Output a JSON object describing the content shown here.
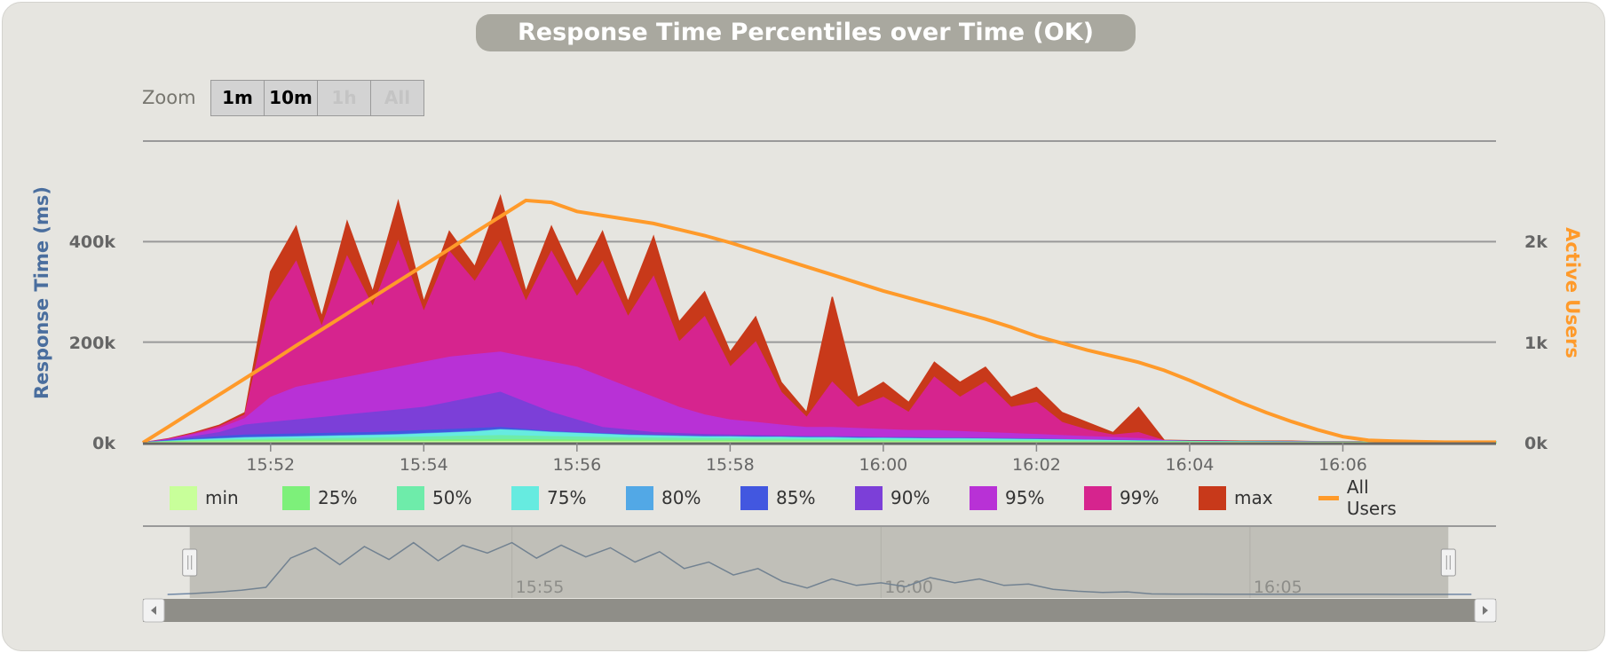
{
  "title": "Response Time Percentiles over Time (OK)",
  "zoom": {
    "label": "Zoom",
    "buttons": [
      {
        "label": "1m",
        "enabled": true
      },
      {
        "label": "10m",
        "enabled": true
      },
      {
        "label": "1h",
        "enabled": false
      },
      {
        "label": "All",
        "enabled": false
      }
    ]
  },
  "chart_data": {
    "type": "area",
    "title": "Response Time Percentiles over Time (OK)",
    "xlabel": "",
    "ylabel": "Response Time (ms)",
    "y2label": "Active Users",
    "xlim": [
      "15:50:20",
      "16:08:00"
    ],
    "ylim": [
      0,
      600000
    ],
    "y2lim": [
      0,
      3000
    ],
    "x_ticks": [
      "15:52",
      "15:54",
      "15:56",
      "15:58",
      "16:00",
      "16:02",
      "16:04",
      "16:06"
    ],
    "y_ticks": [
      "0k",
      "200k",
      "400k"
    ],
    "y2_ticks": [
      "0k",
      "1k",
      "2k"
    ],
    "grid": true,
    "legend": "bottom",
    "x": [
      "15:50:20",
      "15:50:40",
      "15:51:00",
      "15:51:20",
      "15:51:40",
      "15:52:00",
      "15:52:20",
      "15:52:40",
      "15:53:00",
      "15:53:20",
      "15:53:40",
      "15:54:00",
      "15:54:20",
      "15:54:40",
      "15:55:00",
      "15:55:20",
      "15:55:40",
      "15:56:00",
      "15:56:20",
      "15:56:40",
      "15:57:00",
      "15:57:20",
      "15:57:40",
      "15:58:00",
      "15:58:20",
      "15:58:40",
      "15:59:00",
      "15:59:20",
      "15:59:40",
      "16:00:00",
      "16:00:20",
      "16:00:40",
      "16:01:00",
      "16:01:20",
      "16:01:40",
      "16:02:00",
      "16:02:20",
      "16:02:40",
      "16:03:00",
      "16:03:20",
      "16:03:40",
      "16:04:00",
      "16:04:20",
      "16:04:40",
      "16:05:00",
      "16:05:20",
      "16:05:40",
      "16:06:00",
      "16:06:20",
      "16:06:40",
      "16:07:00",
      "16:07:20",
      "16:07:40",
      "16:08:00"
    ],
    "series_scale_note": "k",
    "series": [
      {
        "name": "max",
        "color": "#C8391A",
        "axis": "left",
        "values": [
          0,
          8,
          20,
          35,
          60,
          340,
          430,
          250,
          440,
          300,
          480,
          280,
          420,
          350,
          490,
          300,
          430,
          320,
          420,
          280,
          410,
          240,
          300,
          180,
          250,
          120,
          60,
          290,
          90,
          120,
          80,
          160,
          120,
          150,
          90,
          110,
          60,
          40,
          20,
          70,
          5,
          4,
          4,
          3,
          3,
          3,
          2,
          2,
          2,
          2,
          1,
          1,
          1,
          1
        ]
      },
      {
        "name": "99%",
        "color": "#D6248E",
        "axis": "left",
        "values": [
          0,
          7,
          18,
          32,
          55,
          280,
          360,
          230,
          370,
          270,
          400,
          260,
          380,
          320,
          400,
          280,
          380,
          290,
          360,
          250,
          330,
          200,
          250,
          150,
          200,
          100,
          50,
          120,
          70,
          90,
          60,
          130,
          90,
          120,
          70,
          80,
          40,
          25,
          15,
          20,
          4,
          3,
          3,
          2,
          2,
          2,
          1.5,
          1.5,
          1.5,
          1.5,
          1,
          1,
          1,
          1
        ]
      },
      {
        "name": "95%",
        "color": "#B831D6",
        "axis": "left",
        "values": [
          0,
          6,
          16,
          28,
          48,
          90,
          110,
          120,
          130,
          140,
          150,
          160,
          170,
          175,
          180,
          170,
          160,
          150,
          130,
          110,
          90,
          70,
          55,
          45,
          40,
          35,
          30,
          30,
          28,
          26,
          24,
          24,
          22,
          20,
          18,
          16,
          14,
          12,
          10,
          8,
          4,
          3,
          3,
          2,
          2,
          2,
          1.5,
          1.5,
          1.2,
          1.2,
          1,
          1,
          1,
          1
        ]
      },
      {
        "name": "90%",
        "color": "#7C3FD8",
        "axis": "left",
        "values": [
          0,
          5,
          12,
          20,
          35,
          40,
          45,
          50,
          55,
          60,
          65,
          70,
          80,
          90,
          100,
          80,
          60,
          45,
          30,
          25,
          20,
          18,
          16,
          15,
          14,
          13,
          12,
          12,
          11,
          10,
          10,
          9,
          9,
          8,
          8,
          7,
          6,
          5,
          5,
          4,
          3,
          3,
          2,
          2,
          2,
          1.5,
          1.5,
          1.2,
          1.2,
          1,
          1,
          1,
          1,
          1
        ]
      },
      {
        "name": "85%",
        "color": "#4257E0",
        "axis": "left",
        "values": [
          0,
          4,
          8,
          12,
          15,
          16,
          17,
          18,
          19,
          20,
          22,
          24,
          26,
          28,
          30,
          26,
          22,
          20,
          18,
          16,
          15,
          14,
          13,
          12,
          12,
          11,
          11,
          10,
          10,
          9,
          9,
          8,
          8,
          8,
          7,
          7,
          6,
          5,
          4,
          4,
          3,
          2.5,
          2,
          2,
          1.8,
          1.5,
          1.2,
          1.2,
          1,
          1,
          1,
          1,
          1,
          1
        ]
      },
      {
        "name": "80%",
        "color": "#52A8E6",
        "axis": "left",
        "values": [
          0,
          3,
          6,
          8,
          10,
          11,
          12,
          13,
          14,
          15,
          16,
          18,
          20,
          22,
          26,
          24,
          21,
          19,
          17,
          15,
          14,
          13,
          12,
          12,
          11,
          11,
          10,
          10,
          9,
          9,
          8,
          8,
          8,
          7,
          7,
          6,
          6,
          5,
          4,
          3.5,
          3,
          2.5,
          2,
          1.8,
          1.6,
          1.4,
          1.2,
          1.1,
          1,
          1,
          1,
          0.9,
          0.9,
          0.9
        ]
      },
      {
        "name": "75%",
        "color": "#66EBE0",
        "axis": "left",
        "values": [
          0,
          2.5,
          5,
          7,
          9,
          10,
          11,
          12,
          13,
          14,
          15,
          17,
          19,
          21,
          25,
          23,
          20,
          18,
          16,
          14,
          13,
          12,
          11,
          11,
          10,
          10,
          9,
          9,
          8,
          8,
          8,
          7,
          7,
          7,
          6,
          6,
          5,
          4.5,
          4,
          3,
          2.6,
          2.2,
          1.8,
          1.6,
          1.4,
          1.2,
          1.1,
          1,
          1,
          0.9,
          0.9,
          0.8,
          0.8,
          0.8
        ]
      },
      {
        "name": "50%",
        "color": "#6EECAA",
        "axis": "left",
        "values": [
          0,
          2,
          3.5,
          5,
          6,
          7,
          7.5,
          8,
          8.5,
          9,
          10,
          11,
          12,
          13,
          14,
          13,
          12,
          11,
          10,
          9.5,
          9,
          8.5,
          8,
          7.5,
          7,
          7,
          6.5,
          6,
          6,
          5.5,
          5,
          5,
          4.8,
          4.5,
          4.2,
          4,
          3.6,
          3.2,
          2.8,
          2.4,
          2,
          1.7,
          1.4,
          1.2,
          1.1,
          1,
          0.9,
          0.8,
          0.8,
          0.7,
          0.7,
          0.7,
          0.6,
          0.6
        ]
      },
      {
        "name": "25%",
        "color": "#7DF07A",
        "axis": "left",
        "values": [
          0,
          1.5,
          2.5,
          3,
          3.5,
          4,
          4,
          4.2,
          4.4,
          4.6,
          5,
          5,
          5.5,
          5.5,
          6,
          6,
          5.5,
          5,
          5,
          4.6,
          4.4,
          4.2,
          4,
          3.8,
          3.6,
          3.4,
          3.2,
          3,
          3,
          2.8,
          2.6,
          2.5,
          2.4,
          2.2,
          2,
          2,
          1.8,
          1.6,
          1.4,
          1.2,
          1,
          0.9,
          0.8,
          0.7,
          0.6,
          0.6,
          0.5,
          0.5,
          0.5,
          0.4,
          0.4,
          0.4,
          0.4,
          0.4
        ]
      },
      {
        "name": "min",
        "color": "#C8FF9A",
        "axis": "left",
        "values": [
          0,
          0.5,
          0.8,
          1,
          1.2,
          1.4,
          1.5,
          1.6,
          1.7,
          1.8,
          2,
          2,
          2,
          2,
          2.2,
          2.2,
          2,
          2,
          2,
          1.8,
          1.8,
          1.6,
          1.6,
          1.5,
          1.4,
          1.4,
          1.3,
          1.2,
          1.2,
          1.1,
          1,
          1,
          1,
          0.9,
          0.9,
          0.8,
          0.8,
          0.7,
          0.6,
          0.5,
          0.4,
          0.4,
          0.3,
          0.3,
          0.3,
          0.3,
          0.2,
          0.2,
          0.2,
          0.2,
          0.2,
          0.2,
          0.2,
          0.2
        ]
      },
      {
        "name": "All Users",
        "color": "#FF9A2A",
        "axis": "right",
        "type": "line",
        "values": [
          0,
          160,
          320,
          480,
          640,
          800,
          965,
          1125,
          1285,
          1445,
          1605,
          1765,
          1925,
          2090,
          2250,
          2410,
          2390,
          2300,
          2260,
          2220,
          2180,
          2120,
          2060,
          1990,
          1910,
          1830,
          1750,
          1670,
          1590,
          1510,
          1440,
          1370,
          1300,
          1230,
          1150,
          1060,
          990,
          920,
          860,
          800,
          720,
          620,
          510,
          400,
          300,
          210,
          130,
          60,
          25,
          15,
          10,
          5,
          5,
          5
        ]
      }
    ],
    "legend_order": [
      "min",
      "25%",
      "50%",
      "75%",
      "80%",
      "85%",
      "90%",
      "95%",
      "99%",
      "max",
      "All Users"
    ],
    "navigator": {
      "xlim": [
        "15:50:00",
        "16:08:20"
      ],
      "x_ticks": [
        "15:55",
        "16:00",
        "16:05"
      ],
      "line_color": "#6F87A5",
      "selected_range": [
        "15:50:20",
        "16:08:00"
      ]
    }
  }
}
